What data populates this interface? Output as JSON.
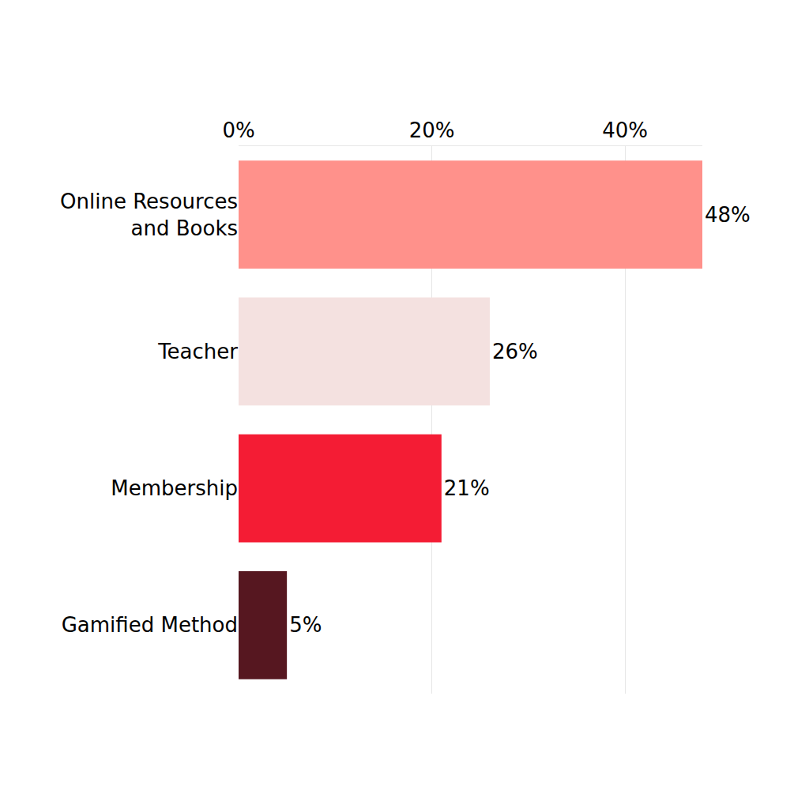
{
  "chart_data": {
    "type": "bar",
    "orientation": "horizontal",
    "categories": [
      "Online Resources\nand Books",
      "Teacher",
      "Membership",
      "Gamified Method"
    ],
    "values": [
      48,
      26,
      21,
      5
    ],
    "value_labels": [
      "48%",
      "26%",
      "21%",
      "5%"
    ],
    "colors": [
      "#ff918b",
      "#f4e1e0",
      "#f41c34",
      "#561720"
    ],
    "xlim": [
      0,
      48
    ],
    "xticks": [
      {
        "value": 0,
        "label": "0%"
      },
      {
        "value": 20,
        "label": "20%"
      },
      {
        "value": 40,
        "label": "40%"
      }
    ],
    "grid": true,
    "data_labels": true
  }
}
